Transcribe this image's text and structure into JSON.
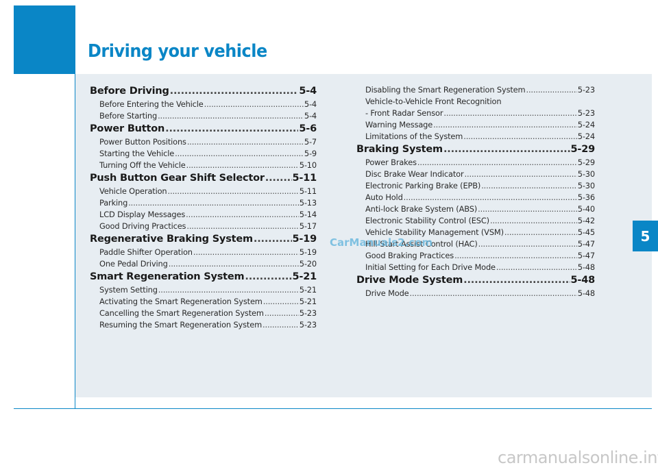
{
  "header": {
    "title": "Driving your vehicle"
  },
  "chapter_tab": "5",
  "watermark": "CarManuals2.com",
  "footer_url": "carmanualsonline.info",
  "toc_left": [
    {
      "type": "main",
      "label": "Before Driving",
      "page": "5-4"
    },
    {
      "type": "sub",
      "label": "Before Entering the Vehicle",
      "page": "5-4"
    },
    {
      "type": "sub",
      "label": "Before Starting",
      "page": "5-4"
    },
    {
      "type": "main",
      "label": "Power Button",
      "page": "5-6"
    },
    {
      "type": "sub",
      "label": "Power Button Positions",
      "page": "5-7"
    },
    {
      "type": "sub",
      "label": "Starting the Vehicle",
      "page": "5-9"
    },
    {
      "type": "sub",
      "label": "Turning Off the Vehicle",
      "page": "5-10"
    },
    {
      "type": "main",
      "label": "Push Button Gear Shift Selector",
      "page": "5-11"
    },
    {
      "type": "sub",
      "label": "Vehicle Operation",
      "page": "5-11"
    },
    {
      "type": "sub",
      "label": "Parking",
      "page": "5-13"
    },
    {
      "type": "sub",
      "label": "LCD Display Messages",
      "page": "5-14"
    },
    {
      "type": "sub",
      "label": "Good Driving Practices",
      "page": "5-17"
    },
    {
      "type": "main",
      "label": "Regenerative Braking System",
      "page": "5-19"
    },
    {
      "type": "sub",
      "label": "Paddle Shifter Operation",
      "page": "5-19"
    },
    {
      "type": "sub",
      "label": "One Pedal Driving",
      "page": "5-20"
    },
    {
      "type": "main",
      "label": "Smart Regeneration System",
      "page": "5-21"
    },
    {
      "type": "sub",
      "label": "System Setting",
      "page": "5-21"
    },
    {
      "type": "sub",
      "label": "Activating the Smart Regeneration System",
      "page": "5-21"
    },
    {
      "type": "sub",
      "label": "Cancelling the Smart Regeneration System",
      "page": "5-23"
    },
    {
      "type": "sub",
      "label": "Resuming the Smart Regeneration System",
      "page": "5-23"
    }
  ],
  "toc_right": [
    {
      "type": "sub",
      "label": "Disabling the Smart Regeneration System",
      "page": "5-23"
    },
    {
      "type": "cont",
      "label": "Vehicle-to-Vehicle Front Recognition",
      "page": ""
    },
    {
      "type": "sub",
      "label": "- Front Radar Sensor",
      "page": "5-23"
    },
    {
      "type": "sub",
      "label": "Warning Message",
      "page": "5-24"
    },
    {
      "type": "sub",
      "label": "Limitations of the System",
      "page": "5-24"
    },
    {
      "type": "main",
      "label": "Braking System",
      "page": "5-29"
    },
    {
      "type": "sub",
      "label": "Power Brakes",
      "page": "5-29"
    },
    {
      "type": "sub",
      "label": "Disc Brake Wear Indicator",
      "page": "5-30"
    },
    {
      "type": "sub",
      "label": "Electronic Parking Brake (EPB)",
      "page": "5-30"
    },
    {
      "type": "sub",
      "label": "Auto Hold",
      "page": "5-36"
    },
    {
      "type": "sub",
      "label": "Anti-lock Brake System (ABS)",
      "page": "5-40"
    },
    {
      "type": "sub",
      "label": "Electronic Stability Control (ESC)",
      "page": "5-42"
    },
    {
      "type": "sub",
      "label": "Vehicle Stability Management (VSM)",
      "page": "5-45"
    },
    {
      "type": "sub",
      "label": "Hill-Start Assist Control (HAC)",
      "page": "5-47"
    },
    {
      "type": "sub",
      "label": "Good Braking Practices",
      "page": "5-47"
    },
    {
      "type": "sub",
      "label": "Initial Setting for Each Drive Mode",
      "page": "5-48"
    },
    {
      "type": "main",
      "label": "Drive Mode System",
      "page": "5-48"
    },
    {
      "type": "sub",
      "label": "Drive Mode",
      "page": "5-48"
    }
  ]
}
